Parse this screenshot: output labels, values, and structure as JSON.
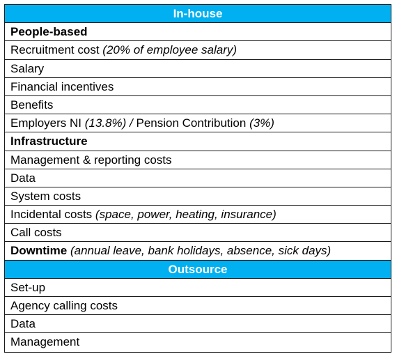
{
  "colors": {
    "header_background": "#00b0f0",
    "header_text": "#ffffff",
    "border": "#1a1a1a"
  },
  "in_house": {
    "title": "In-house",
    "people_based_heading": "People-based",
    "recruitment": {
      "label": "Recruitment cost",
      "note": "(20% of employee salary)"
    },
    "salary": "Salary",
    "financial_incentives": "Financial incentives",
    "benefits": "Benefits",
    "employers_ni": {
      "label_a": "Employers NI",
      "note_a": "(13.8%)",
      "separator": "/",
      "label_b": "Pension Contribution",
      "note_b": "(3%)"
    },
    "infrastructure_heading": "Infrastructure",
    "management_reporting": "Management & reporting costs",
    "data": "Data",
    "system_costs": "System costs",
    "incidental": {
      "label": "Incidental costs",
      "note": "(space, power, heating, insurance)"
    },
    "call_costs": "Call costs",
    "downtime": {
      "label": "Downtime",
      "note": "(annual leave, bank holidays, absence, sick days)"
    }
  },
  "outsource": {
    "title": "Outsource",
    "setup": "Set-up",
    "agency_calling_costs": "Agency calling costs",
    "data": "Data",
    "management": "Management"
  }
}
